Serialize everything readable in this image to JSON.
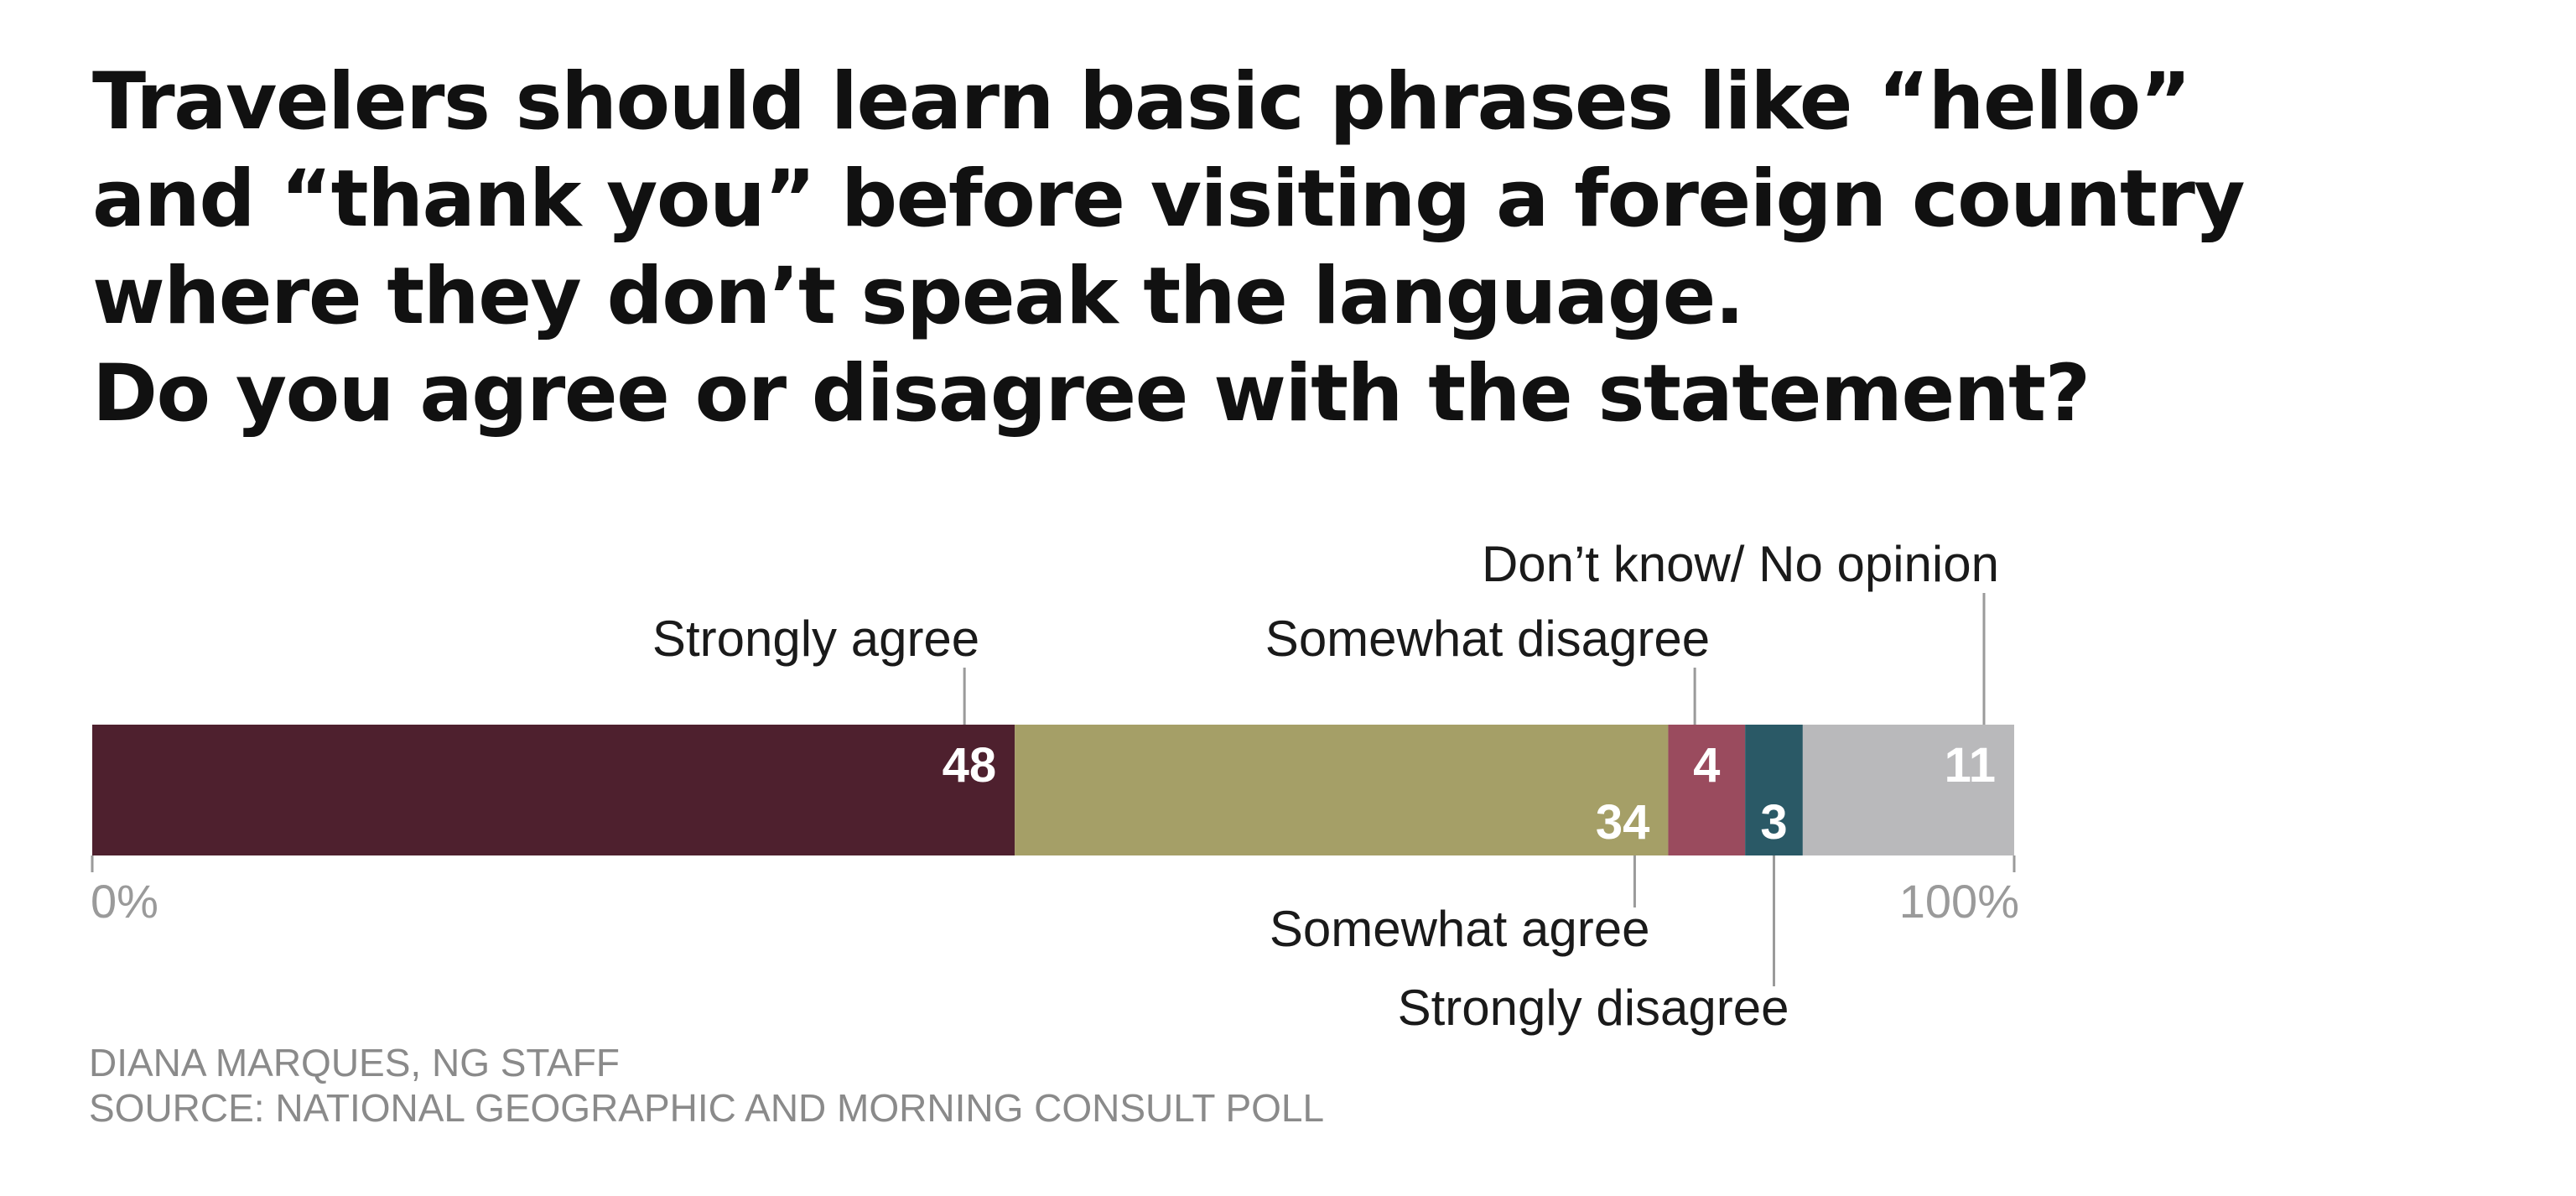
{
  "title_lines": [
    "Travelers should learn basic phrases like “hello”",
    "and “thank you” before visiting a foreign country",
    "where they don’t speak the language.",
    "Do you agree or disagree with the statement?"
  ],
  "credits": {
    "author": "DIANA MARQUES, NG STAFF",
    "source": "SOURCE: NATIONAL GEOGRAPHIC AND MORNING CONSULT POLL"
  },
  "chart_data": {
    "type": "bar",
    "orientation": "horizontal-stacked",
    "categories": [
      "Strongly agree",
      "Somewhat agree",
      "Somewhat disagree",
      "Strongly disagree",
      "Don’t know/ No opinion"
    ],
    "values": [
      48,
      34,
      4,
      3,
      11
    ],
    "colors": [
      "#4e202e",
      "#a59f67",
      "#9a4b5e",
      "#2a5966",
      "#b9b9bb"
    ],
    "xlim": [
      0,
      100
    ],
    "tick_labels": [
      "0%",
      "100%"
    ],
    "label_placement": [
      "above",
      "below",
      "above",
      "below",
      "above"
    ]
  }
}
